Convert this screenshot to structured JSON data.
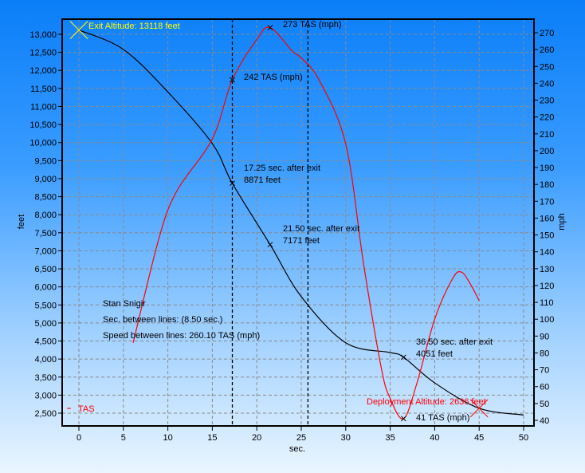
{
  "chart_data": {
    "type": "line",
    "xlabel": "sec.",
    "ylabel_left": "feet",
    "ylabel_right": "mph",
    "xlim": [
      0,
      50
    ],
    "ylim_left": [
      2500,
      13000
    ],
    "ylim_right": [
      40,
      270
    ],
    "x_ticks": [
      0,
      5,
      10,
      15,
      20,
      25,
      30,
      35,
      40,
      45,
      50
    ],
    "y_left_ticks": [
      "2,500",
      "3,000",
      "3,500",
      "4,000",
      "4,500",
      "5,000",
      "5,500",
      "6,000",
      "6,500",
      "7,000",
      "7,500",
      "8,000",
      "8,500",
      "9,000",
      "9,500",
      "10,000",
      "10,500",
      "11,000",
      "11,500",
      "12,000",
      "12,500",
      "13,000"
    ],
    "y_right_ticks": [
      40,
      50,
      60,
      70,
      80,
      90,
      100,
      110,
      120,
      130,
      140,
      150,
      160,
      170,
      180,
      190,
      200,
      210,
      220,
      230,
      240,
      250,
      260,
      270
    ],
    "grid": true,
    "series": [
      {
        "name": "Altitude",
        "axis": "left",
        "color": "#000000",
        "x": [
          0,
          5,
          10,
          15,
          17.25,
          21.5,
          25,
          30,
          35,
          36.5,
          40,
          45,
          50
        ],
        "y": [
          13118,
          12580,
          11400,
          9970,
          8871,
          7171,
          5730,
          4450,
          4180,
          4051,
          3340,
          2636,
          2450
        ]
      },
      {
        "name": "TAS",
        "axis": "right",
        "color": "#ff0000",
        "x": [
          6.1,
          9,
          11,
          15,
          17.25,
          20,
          21.5,
          24,
          25,
          27,
          30,
          32,
          34,
          35,
          36.5,
          38,
          40,
          42,
          43,
          44,
          45
        ],
        "y": [
          86,
          148,
          176,
          207,
          242,
          266,
          273,
          259,
          255,
          242,
          204,
          133,
          71,
          53,
          41,
          62,
          100,
          124,
          128,
          121,
          111
        ]
      }
    ],
    "marker_lines": [
      17.25,
      25.75
    ],
    "annotations": {
      "exit": "Exit Altitude: 13118 feet",
      "peak": "273 TAS (mph)",
      "line1_speed": "242 TAS (mph)",
      "line1_time": "17.25 sec. after exit",
      "line1_alt": "8871 feet",
      "pt2_time": "21.50 sec. after exit",
      "pt2_alt": "7171 feet",
      "pt3_time": "36.50 sec. after exit",
      "pt3_alt": "4051 feet",
      "min_speed": "41 TAS (mph)",
      "deploy": "Deployment Altitude: 2636 feet",
      "name": "Stan Snigir",
      "sec_between": "Sec. between lines: (8.50 sec.)",
      "speed_between": "Speed between lines: 260.10 TAS (mph)"
    },
    "legend": {
      "label": "TAS",
      "placement": "bottom-left",
      "color": "#ff0000"
    },
    "colors": {
      "exit": "#ffff00",
      "deploy": "#ff0000"
    }
  }
}
